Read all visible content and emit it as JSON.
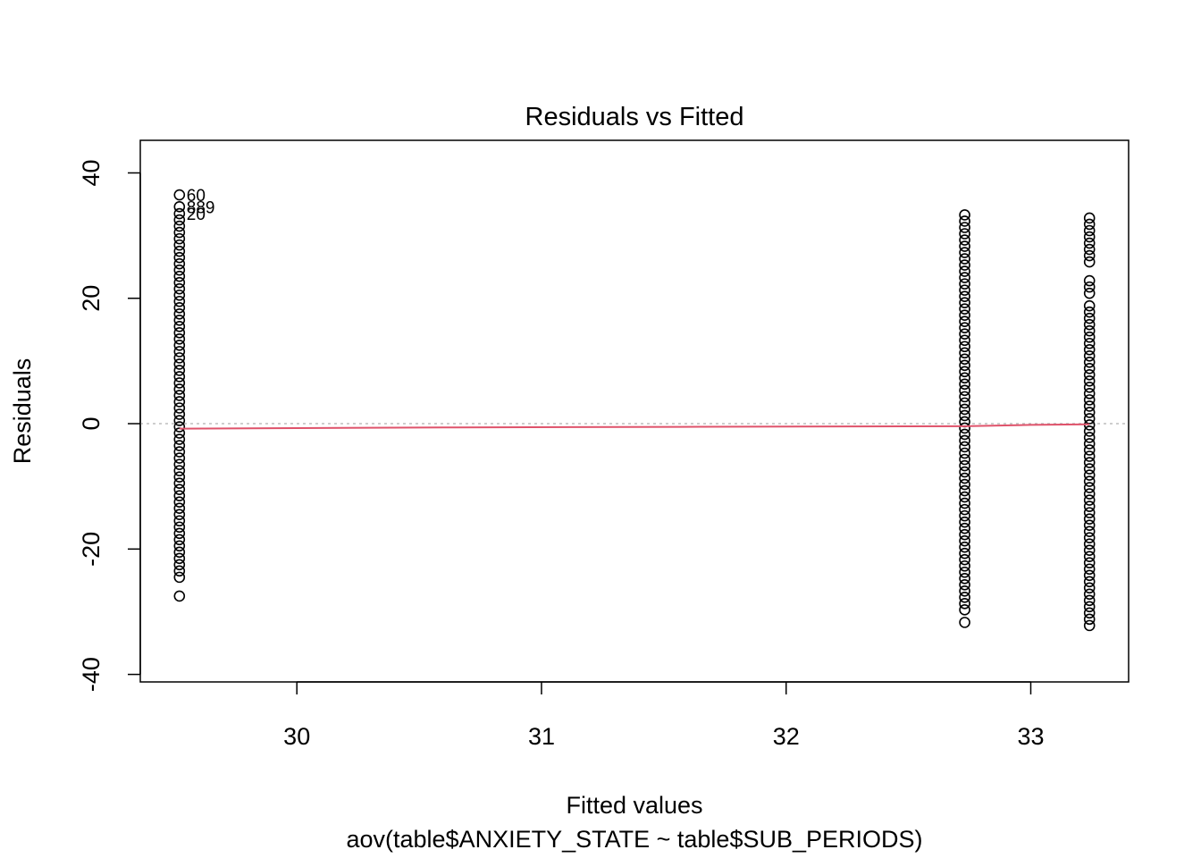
{
  "chart_data": {
    "type": "scatter",
    "title": "Residuals vs Fitted",
    "xlabel": "Fitted values",
    "subtitle": "aov(table$ANXIETY_STATE ~ table$SUB_PERIODS)",
    "ylabel": "Residuals",
    "xlim": [
      29.36,
      33.4
    ],
    "ylim": [
      -41.2,
      45.2
    ],
    "x_ticks": [
      30,
      31,
      32,
      33
    ],
    "x_tick_labels": [
      "30",
      "31",
      "32",
      "33"
    ],
    "y_ticks": [
      -40,
      -20,
      0,
      20,
      40
    ],
    "y_tick_labels": [
      "-40",
      "-20",
      "0",
      "20",
      "40"
    ],
    "grid": false,
    "groups": [
      {
        "fitted": 29.52,
        "residuals": [
          36.5,
          34.6,
          33.5,
          32.5,
          31.5,
          30.5,
          29.5,
          28.5,
          27.5,
          26.5,
          25.5,
          24.5,
          23.5,
          22.5,
          21.5,
          20.5,
          19.5,
          18.5,
          17.5,
          16.5,
          15.5,
          14.5,
          13.5,
          12.5,
          11.5,
          10.5,
          9.5,
          8.5,
          7.5,
          6.5,
          5.5,
          4.5,
          3.5,
          2.5,
          1.5,
          0.5,
          -0.5,
          -1.5,
          -2.5,
          -3.5,
          -4.5,
          -5.5,
          -6.5,
          -7.5,
          -8.5,
          -9.5,
          -10.5,
          -11.5,
          -12.5,
          -13.5,
          -14.5,
          -15.5,
          -16.5,
          -17.5,
          -18.5,
          -19.5,
          -20.5,
          -21.5,
          -22.5,
          -23.5,
          -24.5,
          -27.5
        ]
      },
      {
        "fitted": 32.73,
        "residuals": [
          33.3,
          32.3,
          31.3,
          30.3,
          29.3,
          28.3,
          27.3,
          26.3,
          25.3,
          24.3,
          23.3,
          22.3,
          21.3,
          20.3,
          19.3,
          18.3,
          17.3,
          16.3,
          15.3,
          14.3,
          13.3,
          12.3,
          11.3,
          10.3,
          9.3,
          8.3,
          7.3,
          6.3,
          5.3,
          4.3,
          3.3,
          2.3,
          1.3,
          0.3,
          -0.7,
          -1.7,
          -2.7,
          -3.7,
          -4.7,
          -5.7,
          -6.7,
          -7.7,
          -8.7,
          -9.7,
          -10.7,
          -11.7,
          -12.7,
          -13.7,
          -14.7,
          -15.7,
          -16.7,
          -17.7,
          -18.7,
          -19.7,
          -20.7,
          -21.7,
          -22.7,
          -23.7,
          -24.7,
          -25.7,
          -26.7,
          -27.7,
          -28.7,
          -29.7,
          -31.7
        ]
      },
      {
        "fitted": 33.24,
        "residuals": [
          32.8,
          31.8,
          30.8,
          29.8,
          28.8,
          27.8,
          26.8,
          25.8,
          22.8,
          21.8,
          20.8,
          18.8,
          17.8,
          16.8,
          15.8,
          14.8,
          13.8,
          12.8,
          11.8,
          10.8,
          9.8,
          8.8,
          7.8,
          6.8,
          5.8,
          4.8,
          3.8,
          2.8,
          1.8,
          0.8,
          -0.2,
          -1.2,
          -2.2,
          -3.2,
          -4.2,
          -5.2,
          -6.2,
          -7.2,
          -8.2,
          -9.2,
          -10.2,
          -11.2,
          -12.2,
          -13.2,
          -14.2,
          -15.2,
          -16.2,
          -17.2,
          -18.2,
          -19.2,
          -20.2,
          -21.2,
          -22.2,
          -23.2,
          -24.2,
          -25.2,
          -26.2,
          -27.2,
          -28.2,
          -29.2,
          -30.2,
          -31.2,
          -32.2
        ]
      }
    ],
    "annotations": [
      {
        "label": "60",
        "x": 29.52,
        "y": 36.5
      },
      {
        "label": "889",
        "x": 29.52,
        "y": 34.6
      },
      {
        "label": "20",
        "x": 29.52,
        "y": 33.5
      }
    ],
    "smooth_line": {
      "x": [
        29.52,
        30.6,
        31.65,
        32.73,
        33.0,
        33.24
      ],
      "y": [
        -0.8,
        -0.6,
        -0.5,
        -0.4,
        -0.2,
        -0.1
      ]
    },
    "reference_line_y": 0,
    "colors": {
      "points": "#000000",
      "smooth": "#DF536B",
      "reference": "#BEBEBE",
      "axis": "#000000"
    }
  }
}
